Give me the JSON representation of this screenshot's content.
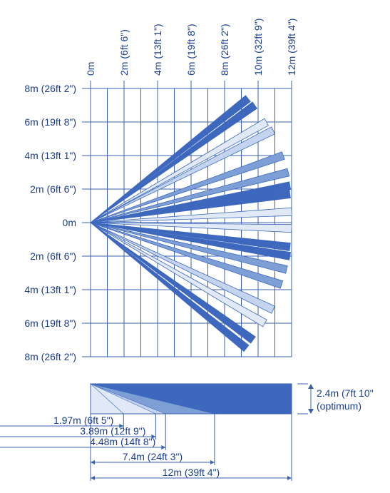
{
  "colors": {
    "dark": "#3d68be",
    "medium": "#7e9fd6",
    "light": "#c4d4ee",
    "pale": "#e1e9f7",
    "line": "#3a62b0",
    "text": "#1a3f8f"
  },
  "top_view": {
    "x_labels": [
      "0m",
      "2m (6ft 6\")",
      "4m (13ft 1\")",
      "6m (19ft 8\")",
      "8m (26ft 2\")",
      "10m (32ft 9\")",
      "12m (39ft 4\")"
    ],
    "y_labels": [
      "8m (26ft 2\")",
      "6m (19ft 8\")",
      "4m (13ft 1\")",
      "2m (6ft 6\")",
      "0m",
      "2m (6ft 6\")",
      "4m (13ft 1\")",
      "6m (19ft 8\")",
      "8m (26ft 2\")"
    ],
    "beams": [
      {
        "end_x": 9.4,
        "end_y": 7.4,
        "shade": "dark"
      },
      {
        "end_x": 9.8,
        "end_y": 7.0,
        "shade": "dark"
      },
      {
        "end_x": 10.5,
        "end_y": 6.0,
        "shade": "pale"
      },
      {
        "end_x": 10.9,
        "end_y": 5.5,
        "shade": "light"
      },
      {
        "end_x": 11.5,
        "end_y": 4.0,
        "shade": "medium"
      },
      {
        "end_x": 11.8,
        "end_y": 3.0,
        "shade": "medium"
      },
      {
        "end_x": 11.9,
        "end_y": 2.2,
        "shade": "dark"
      },
      {
        "end_x": 11.9,
        "end_y": 1.7,
        "shade": "dark"
      },
      {
        "end_x": 12.0,
        "end_y": 0.65,
        "shade": "pale"
      },
      {
        "end_x": 12.0,
        "end_y": -0.35,
        "shade": "pale"
      },
      {
        "end_x": 11.9,
        "end_y": -1.45,
        "shade": "dark"
      },
      {
        "end_x": 11.9,
        "end_y": -2.0,
        "shade": "dark"
      },
      {
        "end_x": 11.7,
        "end_y": -2.8,
        "shade": "medium"
      },
      {
        "end_x": 11.4,
        "end_y": -3.7,
        "shade": "medium"
      },
      {
        "end_x": 10.9,
        "end_y": -5.2,
        "shade": "light"
      },
      {
        "end_x": 10.4,
        "end_y": -6.0,
        "shade": "pale"
      },
      {
        "end_x": 9.7,
        "end_y": -7.0,
        "shade": "dark"
      },
      {
        "end_x": 9.3,
        "end_y": -7.5,
        "shade": "dark"
      }
    ]
  },
  "side_view": {
    "height_label_line1": "2.4m (7ft 10\"",
    "height_label_line2": "(optimum)",
    "distances": [
      {
        "value_m": 1.97,
        "label": "1.97m (6ft 5\")",
        "shade": "pale"
      },
      {
        "value_m": 3.89,
        "label": "3.89m (12ft 9\")",
        "shade": "light"
      },
      {
        "value_m": 4.48,
        "label": "4.48m (14ft 8\")",
        "shade": "medium"
      },
      {
        "value_m": 7.4,
        "label": "7.4m (24ft 3\")",
        "shade": "dark"
      },
      {
        "value_m": 12,
        "label": "12m (39ft 4\")",
        "shade": "dark"
      }
    ]
  }
}
